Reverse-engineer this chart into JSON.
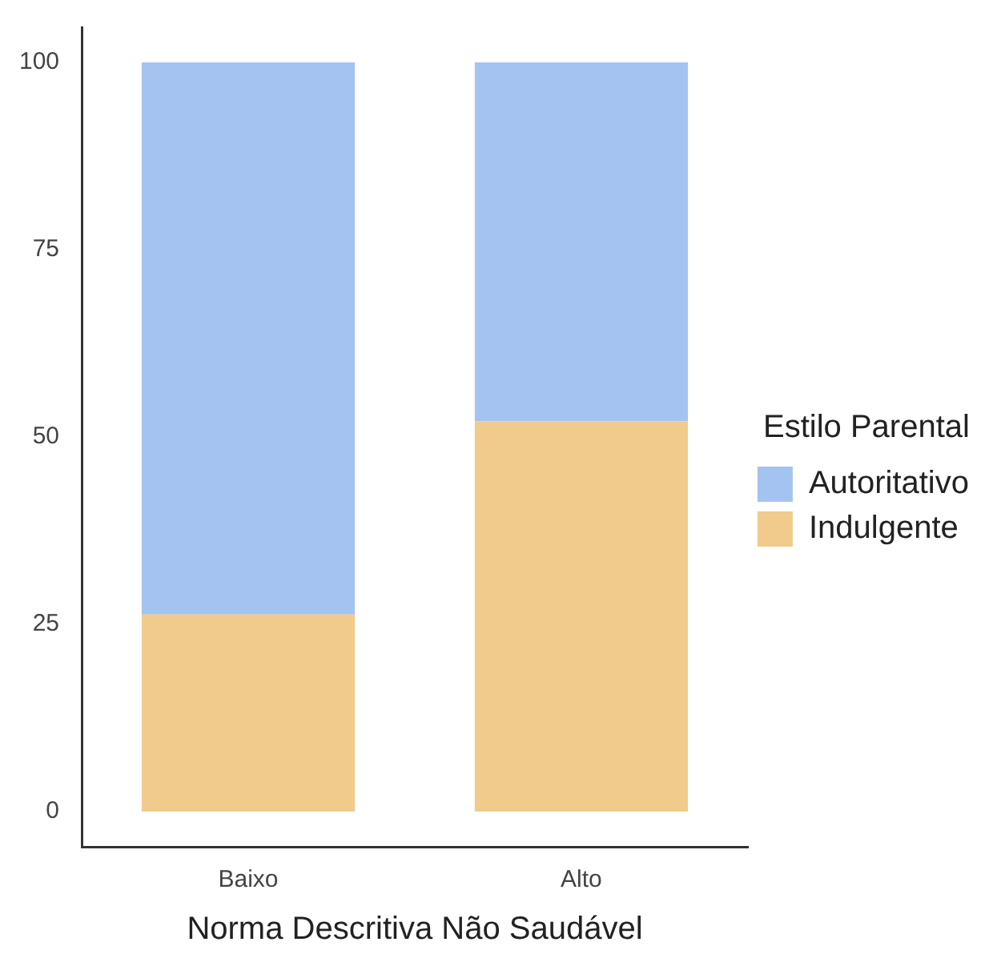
{
  "chart_data": {
    "type": "bar",
    "stacked": true,
    "xlabel": "Norma Descritiva Não Saudável",
    "legend_title": "Estilo Parental",
    "legend": "right",
    "grid": false,
    "categories": [
      "Baixo",
      "Alto"
    ],
    "series": [
      {
        "name": "Indulgente",
        "color": "#f0cb8c",
        "values": [
          26.3,
          52.1
        ]
      },
      {
        "name": "Autoritativo",
        "color": "#a4c3f0",
        "values": [
          73.7,
          47.9
        ]
      }
    ],
    "ylim": [
      -4.7,
      104.7
    ],
    "yticks": [
      0,
      25,
      50,
      75,
      100
    ]
  }
}
